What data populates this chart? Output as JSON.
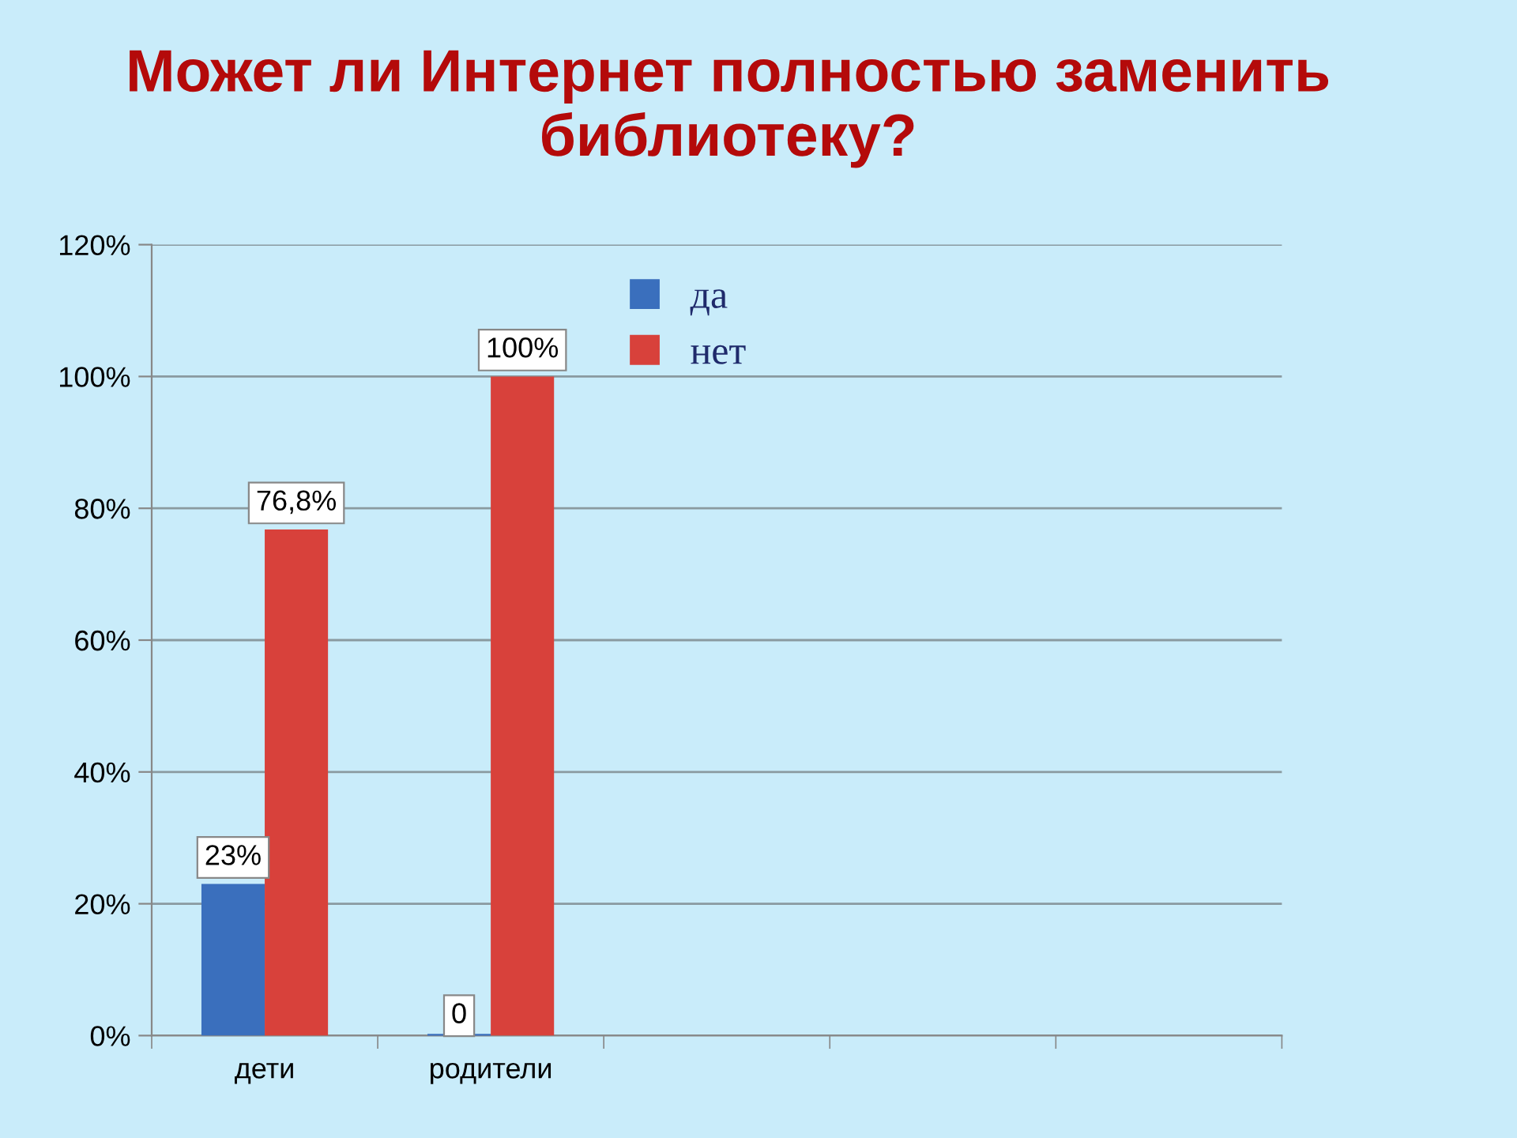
{
  "chart_data": {
    "type": "bar",
    "title": "Может ли Интернет полностью заменить библиотеку?",
    "categories": [
      "дети",
      "родители",
      null,
      null,
      null
    ],
    "series": [
      {
        "name": "да",
        "color": "#3a6fbd",
        "values": [
          23,
          0,
          null,
          null,
          null
        ],
        "value_labels": [
          "23%",
          "0",
          null,
          null,
          null
        ]
      },
      {
        "name": "нет",
        "color": "#d8413b",
        "values": [
          76.8,
          100,
          null,
          null,
          null
        ],
        "value_labels": [
          "76,8%",
          "100%",
          null,
          null,
          null
        ]
      }
    ],
    "ylim": [
      0,
      120
    ],
    "yticks": [
      {
        "value": 0,
        "label": "0%"
      },
      {
        "value": 20,
        "label": "20%"
      },
      {
        "value": 40,
        "label": "40%"
      },
      {
        "value": 60,
        "label": "60%"
      },
      {
        "value": 80,
        "label": "80%"
      },
      {
        "value": 100,
        "label": "100%"
      },
      {
        "value": 120,
        "label": "120%"
      }
    ],
    "grid": "y",
    "legend": "top"
  }
}
